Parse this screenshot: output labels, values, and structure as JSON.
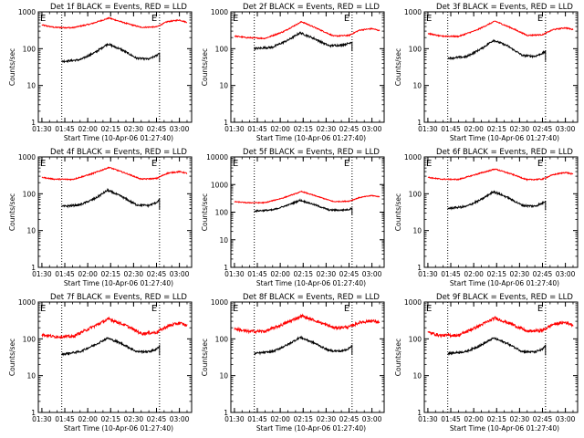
{
  "chart_data": [
    {
      "type": "line",
      "title": "Det 1f BLACK = Events, RED = LLD",
      "xlabel": "Start Time (10-Apr-06 01:27:40)",
      "ylabel": "Counts/sec",
      "log_y": true,
      "ylim": [
        1,
        1000
      ],
      "y_ticks": [
        "1",
        "10",
        "100",
        "1000"
      ],
      "x_ticks": [
        "01:30",
        "01:45",
        "02:00",
        "02:15",
        "02:30",
        "02:45",
        "03:00"
      ],
      "markers": [
        "E",
        "E"
      ],
      "marker_times": [
        "01:43",
        "02:47"
      ],
      "series": [
        {
          "color": "#000000",
          "points": [
            [
              "01:43",
              45
            ],
            [
              "01:55",
              50
            ],
            [
              "02:05",
              80
            ],
            [
              "02:13",
              135
            ],
            [
              "02:22",
              95
            ],
            [
              "02:32",
              55
            ],
            [
              "02:40",
              52
            ],
            [
              "02:45",
              65
            ],
            [
              "02:47",
              78
            ]
          ]
        },
        {
          "color": "#ff0000",
          "points": [
            [
              "01:30",
              440
            ],
            [
              "01:38",
              380
            ],
            [
              "01:50",
              370
            ],
            [
              "02:02",
              470
            ],
            [
              "02:14",
              680
            ],
            [
              "02:25",
              490
            ],
            [
              "02:35",
              380
            ],
            [
              "02:45",
              390
            ],
            [
              "02:52",
              540
            ],
            [
              "03:00",
              600
            ],
            [
              "03:05",
              520
            ]
          ]
        }
      ]
    },
    {
      "type": "line",
      "title": "Det 2f BLACK = Events, RED = LLD",
      "xlabel": "Start Time (10-Apr-06 01:27:40)",
      "ylabel": "Counts/sec",
      "log_y": true,
      "ylim": [
        1,
        1000
      ],
      "y_ticks": [
        "1",
        "10",
        "100",
        "1000"
      ],
      "x_ticks": [
        "01:30",
        "01:45",
        "02:00",
        "02:15",
        "02:30",
        "02:45",
        "03:00"
      ],
      "markers": [
        "E",
        "E"
      ],
      "marker_times": [
        "01:43",
        "02:47"
      ],
      "series": [
        {
          "color": "#000000",
          "points": [
            [
              "01:43",
              100
            ],
            [
              "01:55",
              110
            ],
            [
              "02:05",
              170
            ],
            [
              "02:13",
              270
            ],
            [
              "02:22",
              190
            ],
            [
              "02:32",
              120
            ],
            [
              "02:40",
              125
            ],
            [
              "02:45",
              140
            ],
            [
              "02:47",
              155
            ]
          ]
        },
        {
          "color": "#ff0000",
          "points": [
            [
              "01:30",
              220
            ],
            [
              "01:38",
              200
            ],
            [
              "01:50",
              190
            ],
            [
              "02:02",
              290
            ],
            [
              "02:14",
              540
            ],
            [
              "02:25",
              340
            ],
            [
              "02:35",
              220
            ],
            [
              "02:45",
              230
            ],
            [
              "02:52",
              320
            ],
            [
              "03:00",
              350
            ],
            [
              "03:05",
              310
            ]
          ]
        }
      ]
    },
    {
      "type": "line",
      "title": "Det 3f BLACK = Events, RED = LLD",
      "xlabel": "Start Time (10-Apr-06 01:27:40)",
      "ylabel": "Counts/sec",
      "log_y": true,
      "ylim": [
        1,
        1000
      ],
      "y_ticks": [
        "1",
        "10",
        "100",
        "1000"
      ],
      "x_ticks": [
        "01:30",
        "01:45",
        "02:00",
        "02:15",
        "02:30",
        "02:45",
        "03:00"
      ],
      "markers": [
        "E",
        "E"
      ],
      "marker_times": [
        "01:43",
        "02:47"
      ],
      "series": [
        {
          "color": "#000000",
          "points": [
            [
              "01:43",
              55
            ],
            [
              "01:55",
              60
            ],
            [
              "02:05",
              100
            ],
            [
              "02:13",
              170
            ],
            [
              "02:22",
              120
            ],
            [
              "02:32",
              65
            ],
            [
              "02:40",
              62
            ],
            [
              "02:45",
              75
            ],
            [
              "02:47",
              85
            ]
          ]
        },
        {
          "color": "#ff0000",
          "points": [
            [
              "01:30",
              260
            ],
            [
              "01:38",
              220
            ],
            [
              "01:50",
              215
            ],
            [
              "02:02",
              320
            ],
            [
              "02:14",
              560
            ],
            [
              "02:25",
              360
            ],
            [
              "02:35",
              230
            ],
            [
              "02:45",
              240
            ],
            [
              "02:52",
              330
            ],
            [
              "03:00",
              370
            ],
            [
              "03:05",
              330
            ]
          ]
        }
      ]
    },
    {
      "type": "line",
      "title": "Det 4f BLACK = Events, RED = LLD",
      "xlabel": "Start Time (10-Apr-06 01:27:40)",
      "ylabel": "Counts/sec",
      "log_y": true,
      "ylim": [
        1,
        1000
      ],
      "y_ticks": [
        "1",
        "10",
        "100",
        "1000"
      ],
      "x_ticks": [
        "01:30",
        "01:45",
        "02:00",
        "02:15",
        "02:30",
        "02:45",
        "03:00"
      ],
      "markers": [
        "E",
        "E"
      ],
      "marker_times": [
        "01:43",
        "02:47"
      ],
      "series": [
        {
          "color": "#000000",
          "points": [
            [
              "01:43",
              45
            ],
            [
              "01:55",
              50
            ],
            [
              "02:05",
              75
            ],
            [
              "02:13",
              125
            ],
            [
              "02:22",
              85
            ],
            [
              "02:32",
              50
            ],
            [
              "02:40",
              48
            ],
            [
              "02:45",
              58
            ],
            [
              "02:47",
              70
            ]
          ]
        },
        {
          "color": "#ff0000",
          "points": [
            [
              "01:30",
              280
            ],
            [
              "01:38",
              250
            ],
            [
              "01:50",
              245
            ],
            [
              "02:02",
              340
            ],
            [
              "02:14",
              520
            ],
            [
              "02:25",
              360
            ],
            [
              "02:35",
              250
            ],
            [
              "02:45",
              260
            ],
            [
              "02:52",
              360
            ],
            [
              "03:00",
              400
            ],
            [
              "03:05",
              360
            ]
          ]
        }
      ]
    },
    {
      "type": "line",
      "title": "Det 5f BLACK = Events, RED = LLD",
      "xlabel": "Start Time (10-Apr-06 01:27:40)",
      "ylabel": "Counts/sec",
      "log_y": true,
      "ylim": [
        1,
        10000
      ],
      "y_ticks": [
        "1",
        "10",
        "100",
        "1000",
        "10000"
      ],
      "x_ticks": [
        "01:30",
        "01:45",
        "02:00",
        "02:15",
        "02:30",
        "02:45",
        "03:00"
      ],
      "markers": [
        "E",
        "E"
      ],
      "marker_times": [
        "01:43",
        "02:47"
      ],
      "series": [
        {
          "color": "#000000",
          "points": [
            [
              "01:43",
              110
            ],
            [
              "01:55",
              120
            ],
            [
              "02:05",
              180
            ],
            [
              "02:13",
              270
            ],
            [
              "02:22",
              190
            ],
            [
              "02:32",
              120
            ],
            [
              "02:40",
              118
            ],
            [
              "02:45",
              125
            ],
            [
              "02:47",
              145
            ]
          ]
        },
        {
          "color": "#ff0000",
          "points": [
            [
              "01:30",
              240
            ],
            [
              "01:38",
              220
            ],
            [
              "01:50",
              220
            ],
            [
              "02:02",
              330
            ],
            [
              "02:14",
              560
            ],
            [
              "02:25",
              360
            ],
            [
              "02:35",
              240
            ],
            [
              "02:45",
              250
            ],
            [
              "02:52",
              340
            ],
            [
              "03:00",
              400
            ],
            [
              "03:05",
              360
            ]
          ]
        }
      ]
    },
    {
      "type": "line",
      "title": "Det 6f BLACK = Events, RED = LLD",
      "xlabel": "Start Time (10-Apr-06 01:27:40)",
      "ylabel": "Counts/sec",
      "log_y": true,
      "ylim": [
        1,
        1000
      ],
      "y_ticks": [
        "1",
        "10",
        "100",
        "1000"
      ],
      "x_ticks": [
        "01:30",
        "01:45",
        "02:00",
        "02:15",
        "02:30",
        "02:45",
        "03:00"
      ],
      "markers": [
        "E",
        "E"
      ],
      "marker_times": [
        "01:43",
        "02:47"
      ],
      "series": [
        {
          "color": "#000000",
          "points": [
            [
              "01:43",
              40
            ],
            [
              "01:55",
              45
            ],
            [
              "02:05",
              70
            ],
            [
              "02:13",
              115
            ],
            [
              "02:22",
              80
            ],
            [
              "02:32",
              48
            ],
            [
              "02:40",
              46
            ],
            [
              "02:45",
              55
            ],
            [
              "02:47",
              65
            ]
          ]
        },
        {
          "color": "#ff0000",
          "points": [
            [
              "01:30",
              280
            ],
            [
              "01:38",
              250
            ],
            [
              "01:50",
              245
            ],
            [
              "02:02",
              340
            ],
            [
              "02:14",
              470
            ],
            [
              "02:25",
              340
            ],
            [
              "02:35",
              240
            ],
            [
              "02:45",
              250
            ],
            [
              "02:52",
              330
            ],
            [
              "03:00",
              380
            ],
            [
              "03:05",
              340
            ]
          ]
        }
      ]
    },
    {
      "type": "line",
      "title": "Det 7f BLACK = Events, RED = LLD",
      "xlabel": "Start Time (10-Apr-06 01:27:40)",
      "ylabel": "Counts/sec",
      "log_y": true,
      "ylim": [
        1,
        1000
      ],
      "y_ticks": [
        "1",
        "10",
        "100",
        "1000"
      ],
      "x_ticks": [
        "01:30",
        "01:45",
        "02:00",
        "02:15",
        "02:30",
        "02:45",
        "03:00"
      ],
      "markers": [
        "E",
        "E"
      ],
      "marker_times": [
        "01:43",
        "02:47"
      ],
      "series": [
        {
          "color": "#000000",
          "points": [
            [
              "01:43",
              38
            ],
            [
              "01:55",
              45
            ],
            [
              "02:05",
              70
            ],
            [
              "02:13",
              105
            ],
            [
              "02:22",
              75
            ],
            [
              "02:32",
              45
            ],
            [
              "02:40",
              45
            ],
            [
              "02:45",
              52
            ],
            [
              "02:47",
              65
            ]
          ]
        },
        {
          "color": "#ff0000",
          "points": [
            [
              "01:30",
              130
            ],
            [
              "01:38",
              115
            ],
            [
              "01:50",
              115
            ],
            [
              "02:02",
              200
            ],
            [
              "02:14",
              350
            ],
            [
              "02:25",
              230
            ],
            [
              "02:35",
              140
            ],
            [
              "02:45",
              150
            ],
            [
              "02:52",
              220
            ],
            [
              "03:00",
              270
            ],
            [
              "03:05",
              230
            ]
          ]
        }
      ]
    },
    {
      "type": "line",
      "title": "Det 8f BLACK = Events, RED = LLD",
      "xlabel": "Start Time (10-Apr-06 01:27:40)",
      "ylabel": "Counts/sec",
      "log_y": true,
      "ylim": [
        1,
        1000
      ],
      "y_ticks": [
        "1",
        "10",
        "100",
        "1000"
      ],
      "x_ticks": [
        "01:30",
        "01:45",
        "02:00",
        "02:15",
        "02:30",
        "02:45",
        "03:00"
      ],
      "markers": [
        "E",
        "E"
      ],
      "marker_times": [
        "01:43",
        "02:47"
      ],
      "series": [
        {
          "color": "#000000",
          "points": [
            [
              "01:43",
              40
            ],
            [
              "01:55",
              45
            ],
            [
              "02:05",
              70
            ],
            [
              "02:13",
              110
            ],
            [
              "02:22",
              78
            ],
            [
              "02:32",
              48
            ],
            [
              "02:40",
              46
            ],
            [
              "02:45",
              55
            ],
            [
              "02:47",
              68
            ]
          ]
        },
        {
          "color": "#ff0000",
          "points": [
            [
              "01:30",
              190
            ],
            [
              "01:38",
              160
            ],
            [
              "01:50",
              160
            ],
            [
              "02:02",
              250
            ],
            [
              "02:14",
              420
            ],
            [
              "02:25",
              290
            ],
            [
              "02:35",
              200
            ],
            [
              "02:45",
              210
            ],
            [
              "02:52",
              280
            ],
            [
              "03:00",
              310
            ],
            [
              "03:05",
              280
            ]
          ]
        }
      ]
    },
    {
      "type": "line",
      "title": "Det 9f BLACK = Events, RED = LLD",
      "xlabel": "Start Time (10-Apr-06 01:27:40)",
      "ylabel": "Counts/sec",
      "log_y": true,
      "ylim": [
        1,
        1000
      ],
      "y_ticks": [
        "1",
        "10",
        "100",
        "1000"
      ],
      "x_ticks": [
        "01:30",
        "01:45",
        "02:00",
        "02:15",
        "02:30",
        "02:45",
        "03:00"
      ],
      "markers": [
        "E",
        "E"
      ],
      "marker_times": [
        "01:43",
        "02:47"
      ],
      "series": [
        {
          "color": "#000000",
          "points": [
            [
              "01:43",
              40
            ],
            [
              "01:55",
              45
            ],
            [
              "02:05",
              68
            ],
            [
              "02:13",
              105
            ],
            [
              "02:22",
              75
            ],
            [
              "02:32",
              45
            ],
            [
              "02:40",
              44
            ],
            [
              "02:45",
              52
            ],
            [
              "02:47",
              65
            ]
          ]
        },
        {
          "color": "#ff0000",
          "points": [
            [
              "01:30",
              150
            ],
            [
              "01:38",
              125
            ],
            [
              "01:50",
              125
            ],
            [
              "02:02",
              210
            ],
            [
              "02:14",
              370
            ],
            [
              "02:25",
              250
            ],
            [
              "02:35",
              160
            ],
            [
              "02:45",
              170
            ],
            [
              "02:52",
              250
            ],
            [
              "03:00",
              280
            ],
            [
              "03:05",
              240
            ]
          ]
        }
      ]
    }
  ]
}
